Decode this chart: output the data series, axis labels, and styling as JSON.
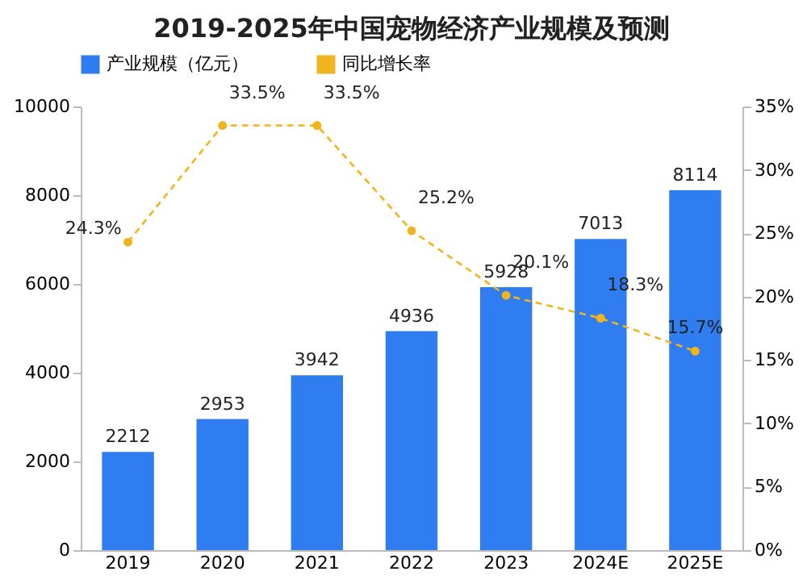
{
  "chart_data": {
    "type": "bar",
    "title": "2019-2025年中国宠物经济产业规模及预测",
    "categories": [
      "2019",
      "2020",
      "2021",
      "2022",
      "2023",
      "2024E",
      "2025E"
    ],
    "series": [
      {
        "name": "产业规模（亿元）",
        "color": "#2f7df0",
        "values": [
          2212,
          2953,
          3942,
          4936,
          5928,
          7013,
          8114
        ],
        "value_labels": [
          "2212",
          "2953",
          "3942",
          "4936",
          "5928",
          "7013",
          "8114"
        ]
      },
      {
        "name": "同比增长率",
        "type": "line",
        "axis": "y2",
        "color": "#f0b41e",
        "values": [
          24.3,
          33.5,
          33.5,
          25.2,
          20.1,
          18.3,
          15.7
        ],
        "value_labels": [
          "24.3%",
          "33.5%",
          "33.5%",
          "25.2%",
          "20.1%",
          "18.3%",
          "15.7%"
        ]
      }
    ],
    "ylim": [
      0,
      10000
    ],
    "yticks": [
      0,
      2000,
      4000,
      6000,
      8000,
      10000
    ],
    "y2lim": [
      0,
      35
    ],
    "y2ticks": [
      {
        "value": 0,
        "label": "0%"
      },
      {
        "value": 5,
        "label": "5%"
      },
      {
        "value": 10,
        "label": "10%"
      },
      {
        "value": 15,
        "label": "15%"
      },
      {
        "value": 20,
        "label": "20%"
      },
      {
        "value": 25,
        "label": "25%"
      },
      {
        "value": 30,
        "label": "30%"
      },
      {
        "value": 35,
        "label": "35%"
      }
    ],
    "legend": "top",
    "grid": false,
    "marker": "circle",
    "line_style": "dashed"
  }
}
